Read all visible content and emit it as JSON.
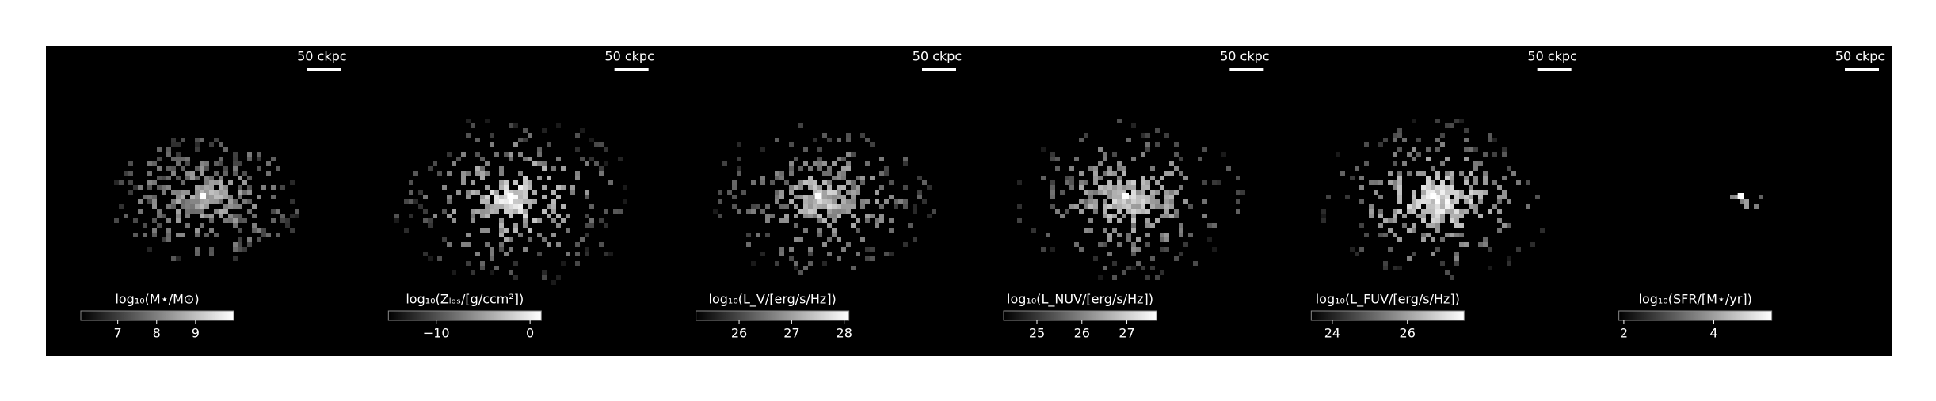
{
  "chart_data": [
    {
      "type": "image",
      "scale_label": "50 ckpc",
      "colorbar_label": "log₁₀(M⋆/M⊙)",
      "clim": [
        6.05,
        9.98
      ],
      "cticks": [
        7,
        8,
        9
      ]
    },
    {
      "type": "image",
      "scale_label": "50 ckpc",
      "colorbar_label": "log₁₀(Zₗₒₛ/[g/ccm²])",
      "clim": [
        -15.1,
        1.2
      ],
      "cticks": [
        {
          "value": -10,
          "label": "−10"
        },
        0
      ]
    },
    {
      "type": "image",
      "scale_label": "50 ckpc",
      "colorbar_label": "log₁₀(L_V/[erg/s/Hz])",
      "clim": [
        25.18,
        28.09
      ],
      "cticks": [
        26,
        27,
        28
      ]
    },
    {
      "type": "image",
      "scale_label": "50 ckpc",
      "colorbar_label": "log₁₀(L_NUV/[erg/s/Hz])",
      "clim": [
        24.26,
        27.66
      ],
      "cticks": [
        25,
        26,
        27
      ]
    },
    {
      "type": "image",
      "scale_label": "50 ckpc",
      "colorbar_label": "log₁₀(L_FUV/[erg/s/Hz])",
      "clim": [
        23.44,
        27.51
      ],
      "cticks": [
        24,
        26
      ]
    },
    {
      "type": "image",
      "scale_label": "50 ckpc",
      "colorbar_label": "log₁₀(SFR/[M⋆/yr])",
      "clim": [
        1.89,
        5.29
      ],
      "cticks": [
        2,
        4
      ]
    }
  ]
}
